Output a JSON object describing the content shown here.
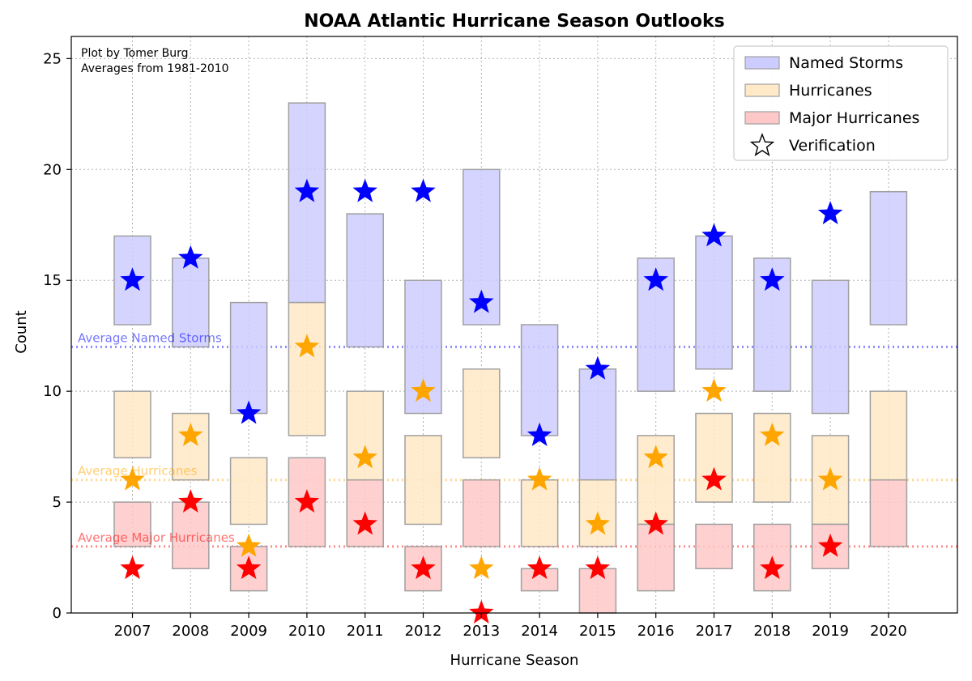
{
  "colors": {
    "named": "#0000ff",
    "hurricane": "#ffa500",
    "major": "#ff0000",
    "named_fill": "#ccccff",
    "hurricane_fill": "#ffe9c6",
    "major_fill": "#ffc8c8",
    "box_edge": "#a0a0a0"
  },
  "chart_data": {
    "type": "bar",
    "title": "NOAA Atlantic Hurricane Season Outlooks",
    "xlabel": "Hurricane Season",
    "ylabel": "Count",
    "ylim": [
      0,
      26
    ],
    "yticks": [
      0,
      5,
      10,
      15,
      20,
      25
    ],
    "grid": true,
    "credit_lines": [
      "Plot by Tomer Burg",
      "Averages from 1981-2010"
    ],
    "categories": [
      "2007",
      "2008",
      "2009",
      "2010",
      "2011",
      "2012",
      "2013",
      "2014",
      "2015",
      "2016",
      "2017",
      "2018",
      "2019",
      "2020"
    ],
    "series": [
      {
        "name": "Named Storms",
        "color_key": "named",
        "fill_key": "named_fill",
        "ranges": [
          [
            13,
            17
          ],
          [
            12,
            16
          ],
          [
            9,
            14
          ],
          [
            14,
            23
          ],
          [
            12,
            18
          ],
          [
            9,
            15
          ],
          [
            13,
            20
          ],
          [
            8,
            13
          ],
          [
            6,
            11
          ],
          [
            10,
            16
          ],
          [
            11,
            17
          ],
          [
            10,
            16
          ],
          [
            9,
            15
          ],
          [
            13,
            19
          ]
        ],
        "verification": [
          15,
          16,
          9,
          19,
          19,
          19,
          14,
          8,
          11,
          15,
          17,
          15,
          18,
          null
        ]
      },
      {
        "name": "Hurricanes",
        "color_key": "hurricane",
        "fill_key": "hurricane_fill",
        "ranges": [
          [
            7,
            10
          ],
          [
            6,
            9
          ],
          [
            4,
            7
          ],
          [
            8,
            14
          ],
          [
            6,
            10
          ],
          [
            4,
            8
          ],
          [
            7,
            11
          ],
          [
            3,
            6
          ],
          [
            3,
            6
          ],
          [
            4,
            8
          ],
          [
            5,
            9
          ],
          [
            5,
            9
          ],
          [
            4,
            8
          ],
          [
            6,
            10
          ]
        ],
        "verification": [
          6,
          8,
          3,
          12,
          7,
          10,
          2,
          6,
          4,
          7,
          10,
          8,
          6,
          null
        ]
      },
      {
        "name": "Major Hurricanes",
        "color_key": "major",
        "fill_key": "major_fill",
        "ranges": [
          [
            3,
            5
          ],
          [
            2,
            5
          ],
          [
            1,
            3
          ],
          [
            3,
            7
          ],
          [
            3,
            6
          ],
          [
            1,
            3
          ],
          [
            3,
            6
          ],
          [
            1,
            2
          ],
          [
            0,
            2
          ],
          [
            1,
            4
          ],
          [
            2,
            4
          ],
          [
            1,
            4
          ],
          [
            2,
            4
          ],
          [
            3,
            6
          ]
        ],
        "verification": [
          2,
          5,
          2,
          5,
          4,
          2,
          0,
          2,
          2,
          4,
          6,
          2,
          3,
          null
        ]
      }
    ],
    "averages": [
      {
        "label": "Average Named Storms",
        "value": 12,
        "color_key": "named"
      },
      {
        "label": "Average Hurricanes",
        "value": 6,
        "color_key": "hurricane"
      },
      {
        "label": "Average Major Hurricanes",
        "value": 3,
        "color_key": "major"
      }
    ],
    "legend": {
      "position": "top-right",
      "entries": [
        {
          "label": "Named Storms",
          "kind": "box",
          "fill_key": "named_fill"
        },
        {
          "label": "Hurricanes",
          "kind": "box",
          "fill_key": "hurricane_fill"
        },
        {
          "label": "Major Hurricanes",
          "kind": "box",
          "fill_key": "major_fill"
        },
        {
          "label": "Verification",
          "kind": "star"
        }
      ]
    }
  }
}
